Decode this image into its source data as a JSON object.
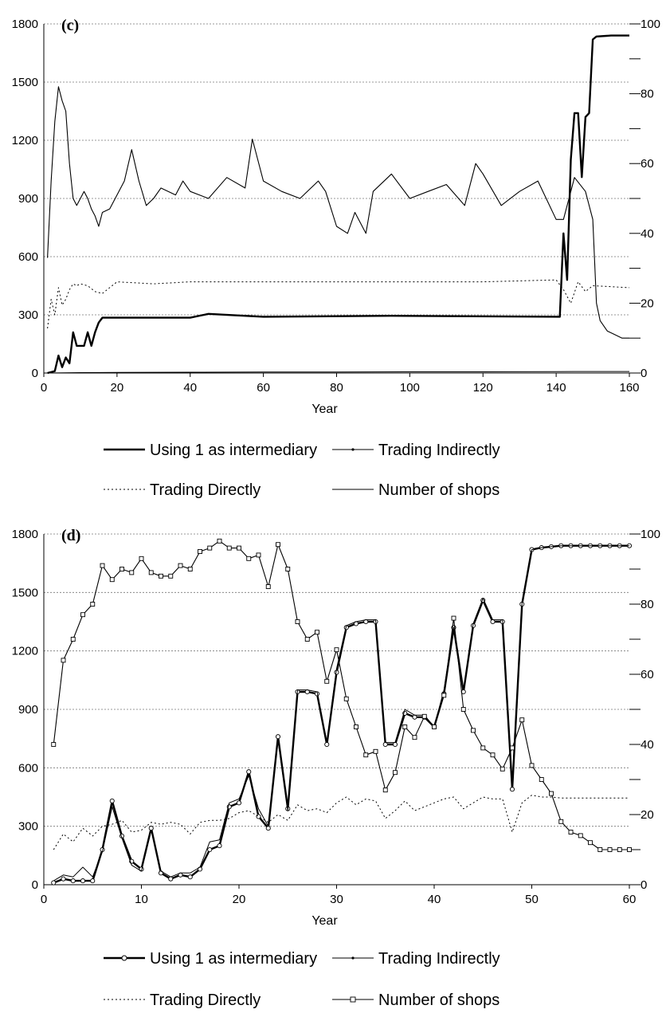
{
  "chart_data": [
    {
      "type": "line",
      "panel_label": "(c)",
      "xlabel": "Year",
      "xlim": [
        0,
        160
      ],
      "xticks": [
        "0",
        "20",
        "40",
        "60",
        "80",
        "100",
        "120",
        "140",
        "160"
      ],
      "ylim": [
        0,
        1800
      ],
      "yticks": [
        "0",
        "300",
        "600",
        "900",
        "1200",
        "1500",
        "1800"
      ],
      "y2lim": [
        0,
        100
      ],
      "y2ticks": [
        "0",
        "20",
        "40",
        "60",
        "80",
        "100"
      ],
      "grid": true,
      "legend": "bottom",
      "series": [
        {
          "name": "Using 1 as intermediary",
          "axis": "left",
          "style": "thick",
          "x": [
            1,
            3,
            4,
            5,
            6,
            7,
            8,
            9,
            10,
            11,
            12,
            13,
            14,
            15,
            16,
            40,
            45,
            60,
            95,
            141,
            142,
            143,
            144,
            145,
            146,
            147,
            148,
            149,
            150,
            151,
            155,
            160
          ],
          "y": [
            0,
            10,
            90,
            30,
            80,
            50,
            210,
            140,
            140,
            140,
            210,
            140,
            210,
            260,
            285,
            285,
            305,
            290,
            295,
            290,
            720,
            480,
            1100,
            1340,
            1340,
            1010,
            1320,
            1340,
            1720,
            1735,
            1740,
            1740
          ]
        },
        {
          "name": "Trading Indirectly",
          "axis": "left",
          "style": "thin-dot",
          "x": [
            1,
            10,
            20,
            40,
            60,
            80,
            100,
            120,
            140,
            145,
            150,
            160
          ],
          "y": [
            0,
            2,
            3,
            4,
            5,
            5,
            6,
            6,
            7,
            8,
            8,
            8
          ]
        },
        {
          "name": "Trading Directly",
          "axis": "left",
          "style": "dotted",
          "x": [
            1,
            2,
            3,
            4,
            5,
            6,
            7,
            8,
            9,
            10,
            12,
            14,
            16,
            20,
            30,
            40,
            60,
            80,
            100,
            120,
            140,
            142,
            144,
            146,
            148,
            150,
            160
          ],
          "y": [
            230,
            380,
            300,
            440,
            350,
            380,
            430,
            460,
            450,
            460,
            450,
            420,
            410,
            470,
            460,
            470,
            470,
            470,
            470,
            470,
            480,
            430,
            360,
            470,
            420,
            450,
            440
          ]
        },
        {
          "name": "Number of shops",
          "axis": "right",
          "style": "thin",
          "x": [
            1,
            2,
            3,
            4,
            5,
            6,
            7,
            8,
            9,
            10,
            11,
            12,
            13,
            14,
            15,
            16,
            18,
            20,
            22,
            24,
            26,
            28,
            30,
            32,
            34,
            36,
            38,
            40,
            45,
            50,
            55,
            57,
            60,
            65,
            70,
            75,
            77,
            80,
            83,
            85,
            88,
            90,
            95,
            100,
            105,
            110,
            115,
            118,
            120,
            125,
            130,
            135,
            140,
            142,
            145,
            148,
            150,
            151,
            152,
            154,
            156,
            158,
            160
          ],
          "y": [
            33,
            55,
            72,
            82,
            78,
            75,
            60,
            50,
            48,
            50,
            52,
            50,
            47,
            45,
            42,
            46,
            47,
            51,
            55,
            64,
            55,
            48,
            50,
            53,
            52,
            51,
            55,
            52,
            50,
            56,
            53,
            67,
            55,
            52,
            50,
            55,
            52,
            42,
            40,
            46,
            40,
            52,
            57,
            50,
            52,
            54,
            48,
            60,
            57,
            48,
            52,
            55,
            44,
            44,
            56,
            52,
            44,
            20,
            15,
            12,
            11,
            10,
            10
          ]
        }
      ]
    },
    {
      "type": "line",
      "panel_label": "(d)",
      "xlabel": "Year",
      "xlim": [
        0,
        60
      ],
      "xticks": [
        "0",
        "10",
        "20",
        "30",
        "40",
        "50",
        "60"
      ],
      "ylim": [
        0,
        1800
      ],
      "yticks": [
        "0",
        "300",
        "600",
        "900",
        "1200",
        "1500",
        "1800"
      ],
      "y2lim": [
        0,
        100
      ],
      "y2ticks": [
        "0",
        "20",
        "40",
        "60",
        "80",
        "100"
      ],
      "grid": true,
      "legend": "bottom",
      "series": [
        {
          "name": "Using 1 as intermediary",
          "axis": "left",
          "style": "thick-circle",
          "x": [
            1,
            2,
            3,
            4,
            5,
            6,
            7,
            8,
            9,
            10,
            11,
            12,
            13,
            14,
            15,
            16,
            17,
            18,
            19,
            20,
            21,
            22,
            23,
            24,
            25,
            26,
            27,
            28,
            29,
            30,
            31,
            32,
            33,
            34,
            35,
            36,
            37,
            38,
            39,
            40,
            41,
            42,
            43,
            44,
            45,
            46,
            47,
            48,
            49,
            50,
            51,
            52,
            53,
            54,
            55,
            56,
            57,
            58,
            59,
            60
          ],
          "y": [
            10,
            30,
            20,
            20,
            20,
            180,
            430,
            250,
            120,
            80,
            290,
            60,
            30,
            50,
            40,
            80,
            180,
            200,
            400,
            420,
            580,
            350,
            290,
            760,
            390,
            990,
            990,
            980,
            720,
            1090,
            1320,
            1340,
            1350,
            1350,
            720,
            720,
            880,
            860,
            860,
            810,
            980,
            1320,
            990,
            1330,
            1460,
            1350,
            1350,
            490,
            1440,
            1720,
            1730,
            1735,
            1740,
            1740,
            1740,
            1740,
            1740,
            1740,
            1740,
            1740
          ]
        },
        {
          "name": "Trading Indirectly",
          "axis": "left",
          "style": "thin-dot",
          "x": [
            1,
            2,
            3,
            4,
            5,
            6,
            7,
            8,
            9,
            10,
            11,
            12,
            13,
            14,
            15,
            16,
            17,
            18,
            19,
            20,
            21,
            22,
            23,
            24,
            25,
            26,
            27,
            28,
            29,
            30,
            31,
            32,
            33,
            34,
            35,
            36,
            37,
            38,
            39,
            40,
            41,
            42,
            43,
            44,
            45,
            46,
            47,
            48,
            49,
            50,
            51,
            52,
            53,
            54,
            55,
            56,
            57,
            58,
            59,
            60
          ],
          "y": [
            20,
            50,
            40,
            90,
            40,
            170,
            400,
            240,
            100,
            70,
            280,
            70,
            40,
            60,
            60,
            90,
            220,
            230,
            420,
            440,
            560,
            390,
            300,
            740,
            380,
            1000,
            1000,
            990,
            730,
            1110,
            1330,
            1350,
            1360,
            1360,
            730,
            730,
            900,
            870,
            870,
            810,
            1000,
            1320,
            1000,
            1340,
            1470,
            1360,
            1360,
            500,
            1450,
            1720,
            1730,
            1735,
            1740,
            1740,
            1740,
            1740,
            1740,
            1740,
            1740,
            1740
          ]
        },
        {
          "name": "Trading Directly",
          "axis": "left",
          "style": "dotted",
          "x": [
            1,
            2,
            3,
            4,
            5,
            6,
            7,
            8,
            9,
            10,
            11,
            12,
            13,
            14,
            15,
            16,
            17,
            18,
            19,
            20,
            21,
            22,
            23,
            24,
            25,
            26,
            27,
            28,
            29,
            30,
            31,
            32,
            33,
            34,
            35,
            36,
            37,
            38,
            39,
            40,
            41,
            42,
            43,
            44,
            45,
            46,
            47,
            48,
            49,
            50,
            51,
            52,
            53,
            54,
            55,
            56,
            57,
            58,
            59,
            60
          ],
          "y": [
            180,
            260,
            220,
            290,
            250,
            300,
            310,
            330,
            270,
            280,
            320,
            310,
            320,
            310,
            260,
            320,
            330,
            330,
            340,
            370,
            380,
            350,
            320,
            360,
            330,
            410,
            380,
            390,
            370,
            420,
            450,
            410,
            440,
            430,
            340,
            380,
            430,
            380,
            400,
            420,
            440,
            450,
            390,
            420,
            450,
            440,
            440,
            270,
            420,
            460,
            450,
            450,
            445,
            445,
            445,
            445,
            445,
            445,
            445,
            445
          ]
        },
        {
          "name": "Number of shops",
          "axis": "right",
          "style": "thin-square",
          "x": [
            1,
            2,
            3,
            4,
            5,
            6,
            7,
            8,
            9,
            10,
            11,
            12,
            13,
            14,
            15,
            16,
            17,
            18,
            19,
            20,
            21,
            22,
            23,
            24,
            25,
            26,
            27,
            28,
            29,
            30,
            31,
            32,
            33,
            34,
            35,
            36,
            37,
            38,
            39,
            40,
            41,
            42,
            43,
            44,
            45,
            46,
            47,
            48,
            49,
            50,
            51,
            52,
            53,
            54,
            55,
            56,
            57,
            58,
            59,
            60
          ],
          "y": [
            40,
            64,
            70,
            77,
            80,
            91,
            87,
            90,
            89,
            93,
            89,
            88,
            88,
            91,
            90,
            95,
            96,
            98,
            96,
            96,
            93,
            94,
            85,
            97,
            90,
            75,
            70,
            72,
            58,
            67,
            53,
            45,
            37,
            38,
            27,
            32,
            45,
            42,
            48,
            45,
            54,
            76,
            50,
            44,
            39,
            37,
            33,
            39,
            47,
            34,
            30,
            26,
            18,
            15,
            14,
            12,
            10,
            10,
            10,
            10
          ]
        }
      ]
    }
  ]
}
